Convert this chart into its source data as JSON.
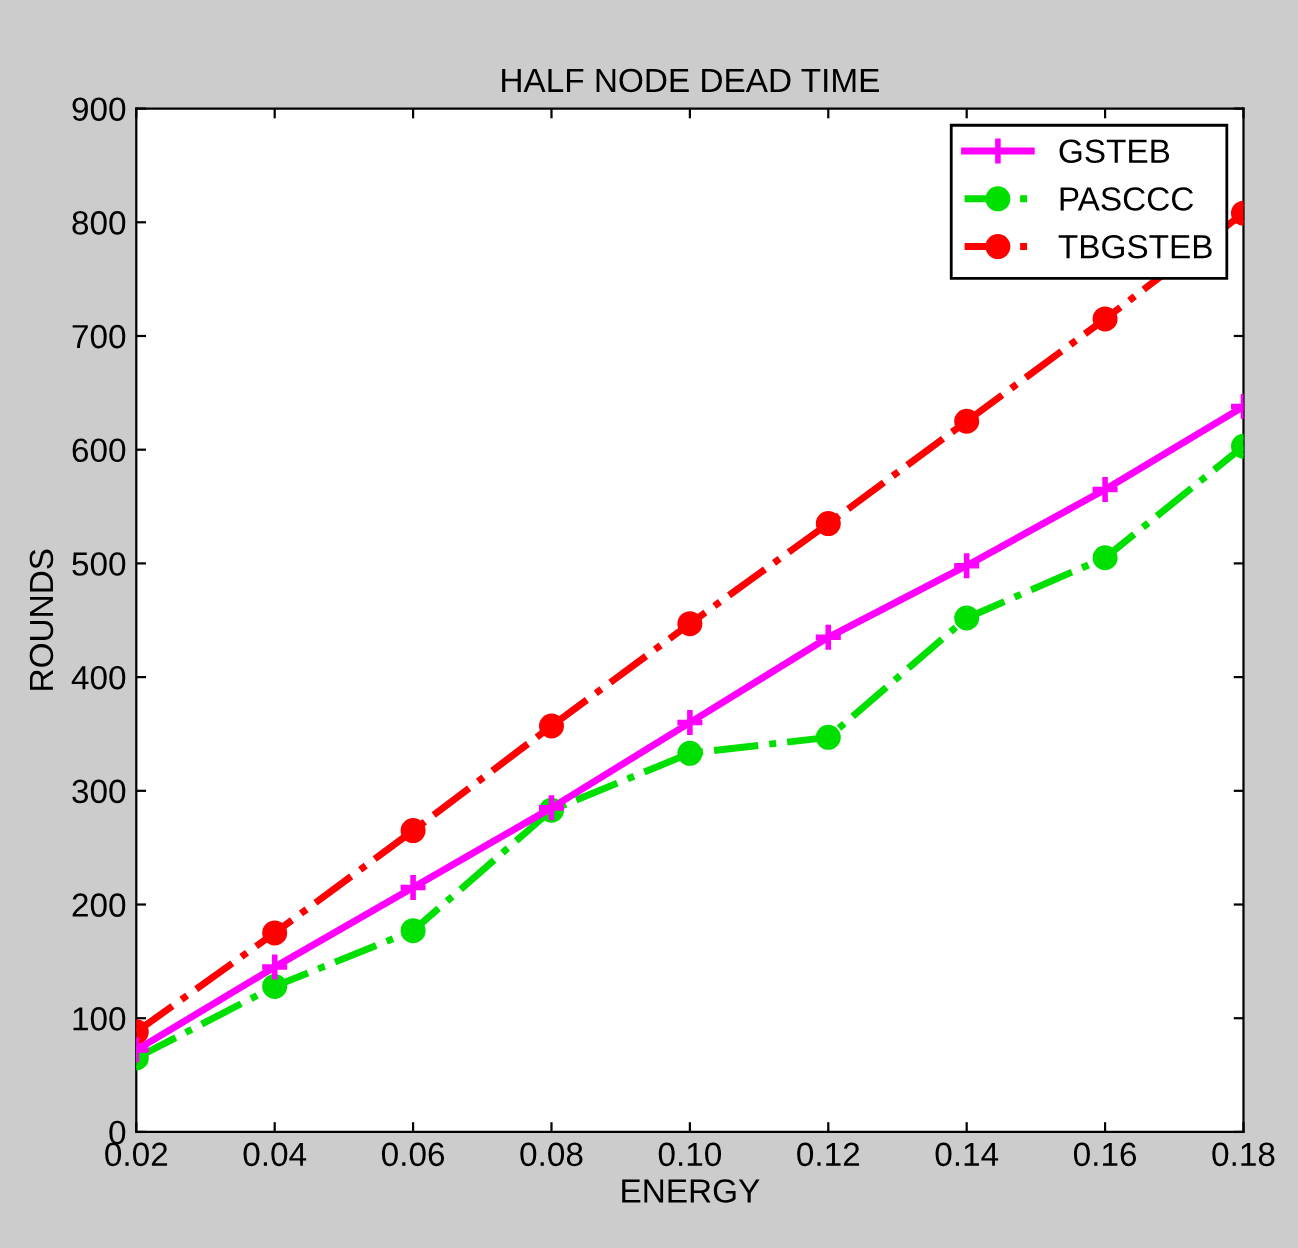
{
  "chart_data": {
    "type": "line",
    "title": "HALF NODE DEAD TIME",
    "xlabel": "ENERGY",
    "ylabel": "ROUNDS",
    "x": [
      0.02,
      0.04,
      0.06,
      0.08,
      0.1,
      0.12,
      0.14,
      0.16,
      0.18
    ],
    "series": [
      {
        "name": "GSTEB",
        "color": "#ff00ff",
        "marker": "cross",
        "line_style": "solid",
        "values": [
          72,
          145,
          215,
          285,
          360,
          435,
          498,
          565,
          638
        ]
      },
      {
        "name": "PASCCC",
        "color": "#00e000",
        "marker": "circle",
        "line_style": "dashdot",
        "values": [
          65,
          128,
          177,
          283,
          333,
          347,
          452,
          505,
          603
        ]
      },
      {
        "name": "TBGSTEB",
        "color": "#ff0000",
        "marker": "circle",
        "line_style": "dashdot",
        "values": [
          88,
          175,
          265,
          357,
          447,
          535,
          625,
          715,
          808
        ]
      }
    ],
    "xlim": [
      0.02,
      0.18
    ],
    "xticks": [
      {
        "value": 0.02,
        "label": "0.02"
      },
      {
        "value": 0.04,
        "label": "0.04"
      },
      {
        "value": 0.06,
        "label": "0.06"
      },
      {
        "value": 0.08,
        "label": "0.08"
      },
      {
        "value": 0.1,
        "label": "0.10"
      },
      {
        "value": 0.12,
        "label": "0.12"
      },
      {
        "value": 0.14,
        "label": "0.14"
      },
      {
        "value": 0.16,
        "label": "0.16"
      },
      {
        "value": 0.18,
        "label": "0.18"
      }
    ],
    "ylim": [
      0,
      900
    ],
    "yticks": [
      0,
      100,
      200,
      300,
      400,
      500,
      600,
      700,
      800,
      900
    ],
    "grid": false,
    "legend": "top right"
  }
}
